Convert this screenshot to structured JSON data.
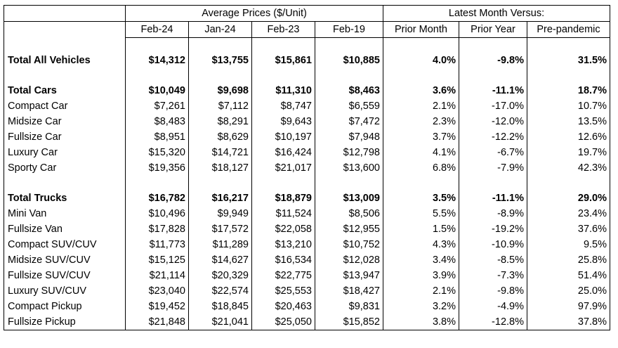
{
  "header": {
    "group_prices": "Average Prices ($/Unit)",
    "group_versus": "Latest Month Versus:",
    "columns": [
      "Feb-24",
      "Jan-24",
      "Feb-23",
      "Feb-19",
      "Prior Month",
      "Prior Year",
      "Pre-pandemic"
    ]
  },
  "rows": [
    {
      "type": "spacer"
    },
    {
      "type": "row",
      "bold": true,
      "label": "Total All Vehicles",
      "values": [
        "$14,312",
        "$13,755",
        "$15,861",
        "$10,885",
        "4.0%",
        "-9.8%",
        "31.5%"
      ]
    },
    {
      "type": "spacer"
    },
    {
      "type": "row",
      "bold": true,
      "label": "Total Cars",
      "values": [
        "$10,049",
        "$9,698",
        "$11,310",
        "$8,463",
        "3.6%",
        "-11.1%",
        "18.7%"
      ]
    },
    {
      "type": "row",
      "bold": false,
      "label": "Compact Car",
      "values": [
        "$7,261",
        "$7,112",
        "$8,747",
        "$6,559",
        "2.1%",
        "-17.0%",
        "10.7%"
      ]
    },
    {
      "type": "row",
      "bold": false,
      "label": "Midsize Car",
      "values": [
        "$8,483",
        "$8,291",
        "$9,643",
        "$7,472",
        "2.3%",
        "-12.0%",
        "13.5%"
      ]
    },
    {
      "type": "row",
      "bold": false,
      "label": "Fullsize Car",
      "values": [
        "$8,951",
        "$8,629",
        "$10,197",
        "$7,948",
        "3.7%",
        "-12.2%",
        "12.6%"
      ]
    },
    {
      "type": "row",
      "bold": false,
      "label": "Luxury Car",
      "values": [
        "$15,320",
        "$14,721",
        "$16,424",
        "$12,798",
        "4.1%",
        "-6.7%",
        "19.7%"
      ]
    },
    {
      "type": "row",
      "bold": false,
      "label": "Sporty Car",
      "values": [
        "$19,356",
        "$18,127",
        "$21,017",
        "$13,600",
        "6.8%",
        "-7.9%",
        "42.3%"
      ]
    },
    {
      "type": "spacer"
    },
    {
      "type": "row",
      "bold": true,
      "label": "Total Trucks",
      "values": [
        "$16,782",
        "$16,217",
        "$18,879",
        "$13,009",
        "3.5%",
        "-11.1%",
        "29.0%"
      ]
    },
    {
      "type": "row",
      "bold": false,
      "label": "Mini Van",
      "values": [
        "$10,496",
        "$9,949",
        "$11,524",
        "$8,506",
        "5.5%",
        "-8.9%",
        "23.4%"
      ]
    },
    {
      "type": "row",
      "bold": false,
      "label": "Fullsize Van",
      "values": [
        "$17,828",
        "$17,572",
        "$22,058",
        "$12,955",
        "1.5%",
        "-19.2%",
        "37.6%"
      ]
    },
    {
      "type": "row",
      "bold": false,
      "label": "Compact SUV/CUV",
      "values": [
        "$11,773",
        "$11,289",
        "$13,210",
        "$10,752",
        "4.3%",
        "-10.9%",
        "9.5%"
      ]
    },
    {
      "type": "row",
      "bold": false,
      "label": "Midsize SUV/CUV",
      "values": [
        "$15,125",
        "$14,627",
        "$16,534",
        "$12,028",
        "3.4%",
        "-8.5%",
        "25.8%"
      ]
    },
    {
      "type": "row",
      "bold": false,
      "label": "Fullsize SUV/CUV",
      "values": [
        "$21,114",
        "$20,329",
        "$22,775",
        "$13,947",
        "3.9%",
        "-7.3%",
        "51.4%"
      ]
    },
    {
      "type": "row",
      "bold": false,
      "label": "Luxury SUV/CUV",
      "values": [
        "$23,040",
        "$22,574",
        "$25,553",
        "$18,427",
        "2.1%",
        "-9.8%",
        "25.0%"
      ]
    },
    {
      "type": "row",
      "bold": false,
      "label": "Compact Pickup",
      "values": [
        "$19,452",
        "$18,845",
        "$20,463",
        "$9,831",
        "3.2%",
        "-4.9%",
        "97.9%"
      ]
    },
    {
      "type": "row",
      "bold": false,
      "label": "Fullsize Pickup",
      "values": [
        "$21,848",
        "$21,041",
        "$25,050",
        "$15,852",
        "3.8%",
        "-12.8%",
        "37.8%"
      ]
    }
  ]
}
